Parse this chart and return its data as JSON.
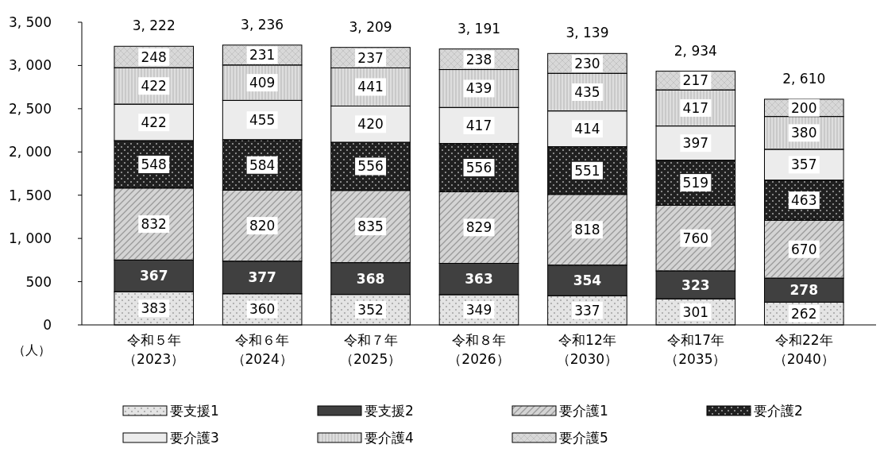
{
  "chart_data": {
    "type": "bar",
    "stacked": true,
    "ylabel": "（人）",
    "categories": [
      "令和５年（2023）",
      "令和６年（2024）",
      "令和７年（2025）",
      "令和８年（2026）",
      "令和12年（2030）",
      "令和17年（2035）",
      "令和22年（2040）"
    ],
    "series": [
      {
        "name": "要支援1",
        "color": "#e4e4e4",
        "values": [
          383,
          360,
          352,
          349,
          337,
          301,
          262
        ]
      },
      {
        "name": "要支援2",
        "color": "#404040",
        "values": [
          367,
          377,
          368,
          363,
          354,
          323,
          278
        ]
      },
      {
        "name": "要介護1",
        "color": "#d4d4d4",
        "values": [
          832,
          820,
          835,
          829,
          818,
          760,
          670
        ]
      },
      {
        "name": "要介護2",
        "color": "#202020",
        "values": [
          548,
          584,
          556,
          556,
          551,
          519,
          463
        ]
      },
      {
        "name": "要介護3",
        "color": "#ececec",
        "values": [
          422,
          455,
          420,
          417,
          414,
          397,
          357
        ]
      },
      {
        "name": "要介護4",
        "color": "#dedede",
        "values": [
          422,
          409,
          441,
          439,
          435,
          417,
          380
        ]
      },
      {
        "name": "要介護5",
        "color": "#d8d8d8",
        "values": [
          248,
          231,
          237,
          238,
          230,
          217,
          200
        ]
      }
    ],
    "totals": [
      "3, 222",
      "3, 236",
      "3, 209",
      "3, 191",
      "3, 139",
      "2, 934",
      "2, 610"
    ],
    "data_labels": true,
    "legend": "bottom",
    "grid": false,
    "ylim": [
      0,
      3500
    ],
    "yticks": [
      0,
      500,
      {
        "value": 1000,
        "label": "1, 000"
      },
      {
        "value": 1500,
        "label": "1, 500"
      },
      {
        "value": 2000,
        "label": "2, 000"
      },
      {
        "value": 2500,
        "label": "2, 500"
      },
      {
        "value": 3000,
        "label": "3, 000"
      },
      {
        "value": 3500,
        "label": "3, 500"
      }
    ]
  }
}
